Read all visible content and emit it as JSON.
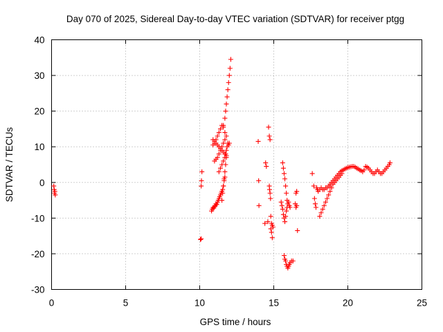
{
  "chart_data": {
    "type": "scatter",
    "title": "Day 070 of 2025, Sidereal Day-to-day VTEC variation (SDTVAR) for receiver ptgg",
    "xlabel": "GPS time / hours",
    "ylabel": "SDTVAR / TECUs",
    "xlim": [
      0,
      25
    ],
    "ylim": [
      -30,
      40
    ],
    "xticks": [
      0,
      5,
      10,
      15,
      20,
      25
    ],
    "yticks": [
      -30,
      -20,
      -10,
      0,
      10,
      20,
      30,
      40
    ],
    "xtick_labels": [
      "0",
      "5",
      "10",
      "15",
      "20",
      "25"
    ],
    "ytick_labels": [
      "-30",
      "-20",
      "-10",
      "0",
      "10",
      "20",
      "30",
      "40"
    ],
    "grid": true,
    "marker": "+",
    "color": "#ff0000",
    "x": [
      0.15,
      0.18,
      0.2,
      0.22,
      0.25,
      10.05,
      10.1,
      10.15,
      10.12,
      10.1,
      10.8,
      10.85,
      10.9,
      10.95,
      11.0,
      11.05,
      11.1,
      11.15,
      11.2,
      11.25,
      11.3,
      11.35,
      11.4,
      11.45,
      11.5,
      11.55,
      11.6,
      11.65,
      11.7,
      10.9,
      11.0,
      11.1,
      11.2,
      11.3,
      11.4,
      11.5,
      11.6,
      11.7,
      10.9,
      11.0,
      11.1,
      11.2,
      11.3,
      11.4,
      11.5,
      11.6,
      11.7,
      11.8,
      11.0,
      11.1,
      11.2,
      11.3,
      11.4,
      11.5,
      11.6,
      11.7,
      11.8,
      11.3,
      11.4,
      11.5,
      11.6,
      11.7,
      11.75,
      11.8,
      11.85,
      11.9,
      11.95,
      12.0,
      11.6,
      11.7,
      11.75,
      11.8,
      11.85,
      11.9,
      11.95,
      12.0,
      12.05,
      12.1,
      11.5,
      11.55,
      11.6,
      11.65,
      11.7,
      11.75,
      11.8,
      13.95,
      13.98,
      14.0,
      14.4,
      14.45,
      14.5,
      14.6,
      14.65,
      14.7,
      14.75,
      14.8,
      14.85,
      14.9,
      14.7,
      14.72,
      14.75,
      14.78,
      14.8,
      14.85,
      14.9,
      14.95,
      15.5,
      15.55,
      15.6,
      15.65,
      15.7,
      15.75,
      15.8,
      15.85,
      15.9,
      15.95,
      16.0,
      16.05,
      16.1,
      15.7,
      15.75,
      15.8,
      15.85,
      15.9,
      15.95,
      16.0,
      16.05,
      16.1,
      16.2,
      16.3,
      15.6,
      15.65,
      15.7,
      15.75,
      15.8,
      15.85,
      15.9,
      16.5,
      16.55,
      16.6,
      16.45,
      16.5,
      16.55,
      17.6,
      17.7,
      17.75,
      17.8,
      17.85,
      17.9,
      17.95,
      18.0,
      18.1,
      18.2,
      18.3,
      18.4,
      18.5,
      18.6,
      18.7,
      18.8,
      18.1,
      18.2,
      18.3,
      18.4,
      18.5,
      18.6,
      18.7,
      18.8,
      18.9,
      19.0,
      19.1,
      19.2,
      19.3,
      19.4,
      19.5,
      19.6,
      18.8,
      18.9,
      19.0,
      19.1,
      19.2,
      19.3,
      19.4,
      19.5,
      19.6,
      19.7,
      19.8,
      19.9,
      20.0,
      20.1,
      20.2,
      20.3,
      20.4,
      20.5,
      20.6,
      20.7,
      20.8,
      20.9,
      21.0,
      21.1,
      21.2,
      21.3,
      21.4,
      21.5,
      21.6,
      21.7,
      21.8,
      21.9,
      22.0,
      22.1,
      22.2,
      22.3,
      22.4,
      22.5,
      22.6,
      22.7,
      22.8,
      22.85
    ],
    "y": [
      -1.0,
      -2.0,
      -3.0,
      -2.5,
      -3.5,
      -16.0,
      -15.8,
      3.0,
      0.5,
      -1.0,
      -8.0,
      -7.5,
      -7.0,
      -7.2,
      -6.8,
      -6.5,
      -6.0,
      -6.2,
      -5.5,
      -5.0,
      -4.5,
      -4.0,
      -3.5,
      -3.0,
      -2.5,
      -2.0,
      -1.0,
      0.5,
      1.5,
      10.5,
      11.0,
      12.0,
      13.0,
      14.0,
      15.0,
      16.0,
      15.5,
      14.0,
      12.0,
      11.5,
      11.0,
      10.5,
      10.0,
      9.5,
      9.0,
      8.5,
      8.0,
      7.5,
      6.0,
      6.5,
      7.0,
      8.0,
      9.0,
      10.0,
      11.0,
      12.0,
      13.0,
      3.0,
      4.0,
      5.0,
      6.0,
      7.0,
      8.0,
      9.0,
      10.0,
      11.0,
      10.5,
      11.0,
      16.0,
      18.0,
      20.0,
      22.0,
      24.0,
      26.0,
      28.0,
      30.0,
      32.0,
      34.5,
      -5.0,
      -3.0,
      -1.0,
      1.0,
      3.0,
      5.0,
      7.0,
      11.5,
      0.5,
      -6.5,
      -11.5,
      5.5,
      4.5,
      -11.0,
      15.5,
      13.0,
      12.0,
      -9.5,
      -11.5,
      -12.0,
      -1.0,
      -2.0,
      -3.0,
      -4.5,
      -13.0,
      -14.0,
      -15.5,
      -12.5,
      -5.5,
      -6.5,
      -7.5,
      -9.0,
      -10.0,
      -11.0,
      -9.5,
      -8.0,
      -7.0,
      -6.0,
      -5.5,
      -6.5,
      -7.0,
      -20.5,
      -21.5,
      -22.0,
      -23.0,
      -23.5,
      -24.0,
      -23.5,
      -23.0,
      -22.5,
      -22.0,
      -22.0,
      5.5,
      4.0,
      2.5,
      1.0,
      -1.0,
      -3.0,
      -5.0,
      -3.0,
      -6.5,
      -13.5,
      -6.0,
      -7.0,
      -2.5,
      2.5,
      -1.0,
      -4.5,
      -6.0,
      -7.0,
      -1.5,
      -2.0,
      -2.5,
      -2.0,
      -1.5,
      -2.0,
      -2.0,
      -1.5,
      -1.5,
      -1.0,
      -1.0,
      -9.5,
      -8.5,
      -7.5,
      -6.5,
      -5.5,
      -4.5,
      -3.5,
      -2.5,
      -1.5,
      -0.5,
      0.0,
      0.5,
      1.0,
      1.5,
      2.0,
      2.5,
      -0.5,
      0.0,
      0.5,
      1.0,
      1.5,
      2.0,
      2.5,
      3.0,
      3.3,
      3.5,
      3.8,
      4.0,
      4.2,
      4.3,
      4.4,
      4.5,
      4.5,
      4.3,
      4.0,
      3.8,
      3.5,
      3.3,
      3.0,
      3.5,
      4.5,
      4.3,
      4.0,
      3.5,
      3.0,
      2.5,
      2.5,
      3.0,
      3.5,
      3.0,
      2.5,
      2.5,
      3.0,
      3.5,
      4.0,
      4.5,
      5.0,
      5.5
    ]
  }
}
